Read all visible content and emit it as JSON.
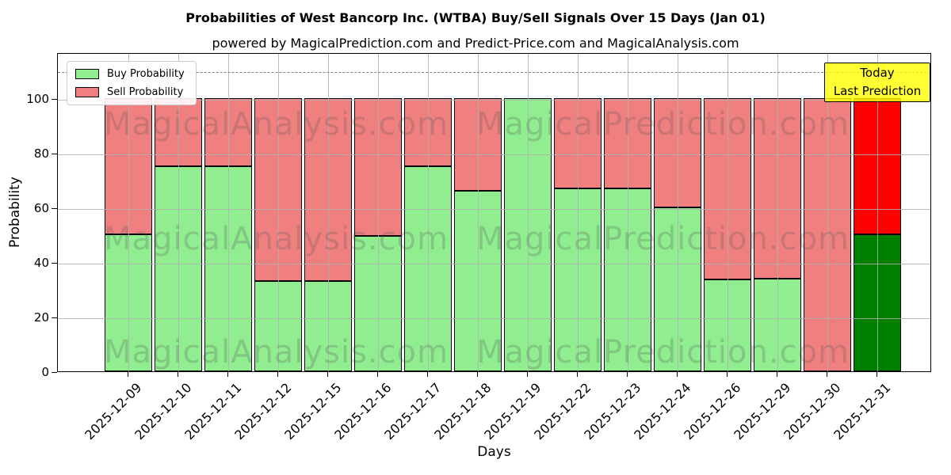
{
  "title": "Probabilities of West Bancorp Inc. (WTBA) Buy/Sell Signals Over 15 Days (Jan 01)",
  "subtitle": "powered by MagicalPrediction.com and Predict-Price.com and MagicalAnalysis.com",
  "axes": {
    "xlabel": "Days",
    "ylabel": "Probability"
  },
  "legend": [
    {
      "label": "Buy Probability",
      "color": "#90EE90"
    },
    {
      "label": "Sell Probability",
      "color": "#F08080"
    }
  ],
  "annotation": {
    "line1": "Today",
    "line2": "Last Prediction",
    "bg_color": "#FFFF00"
  },
  "watermarks": {
    "left": "MagicalAnalysis.com",
    "right": "MagicalPrediction.com"
  },
  "colors": {
    "buy": "#90EE90",
    "sell": "#F08080",
    "today_buy": "#008000",
    "today_sell": "#FF0000",
    "grid": "#B0B0B0",
    "dashed_line": "#7F7F7F",
    "bar_edge": "#000000"
  },
  "chart_data": {
    "type": "bar",
    "stacked": true,
    "title": "Probabilities of West Bancorp Inc. (WTBA) Buy/Sell Signals Over 15 Days (Jan 01)",
    "xlabel": "Days",
    "ylabel": "Probability",
    "categories": [
      "2025-12-09",
      "2025-12-10",
      "2025-12-11",
      "2025-12-12",
      "2025-12-15",
      "2025-12-16",
      "2025-12-17",
      "2025-12-18",
      "2025-12-19",
      "2025-12-22",
      "2025-12-23",
      "2025-12-24",
      "2025-12-26",
      "2025-12-29",
      "2025-12-30",
      "2025-12-31"
    ],
    "series": [
      {
        "name": "Buy Probability",
        "color": "#90EE90",
        "today_color": "#008000",
        "values": [
          50,
          75,
          75,
          33,
          33,
          49.5,
          75,
          66,
          100,
          67,
          67,
          60,
          33.5,
          34,
          0,
          50
        ]
      },
      {
        "name": "Sell Probability",
        "color": "#F08080",
        "today_color": "#FF0000",
        "values": [
          50,
          25,
          25,
          67,
          67,
          50.5,
          25,
          34,
          0,
          33,
          33,
          40,
          66.5,
          66,
          100,
          50
        ]
      }
    ],
    "today_index": 15,
    "ylim": [
      0,
      116.8
    ],
    "yticks": [
      0,
      20,
      40,
      60,
      80,
      100
    ],
    "grid": true,
    "dashed_line_y": 110,
    "legend_position": "upper left"
  }
}
